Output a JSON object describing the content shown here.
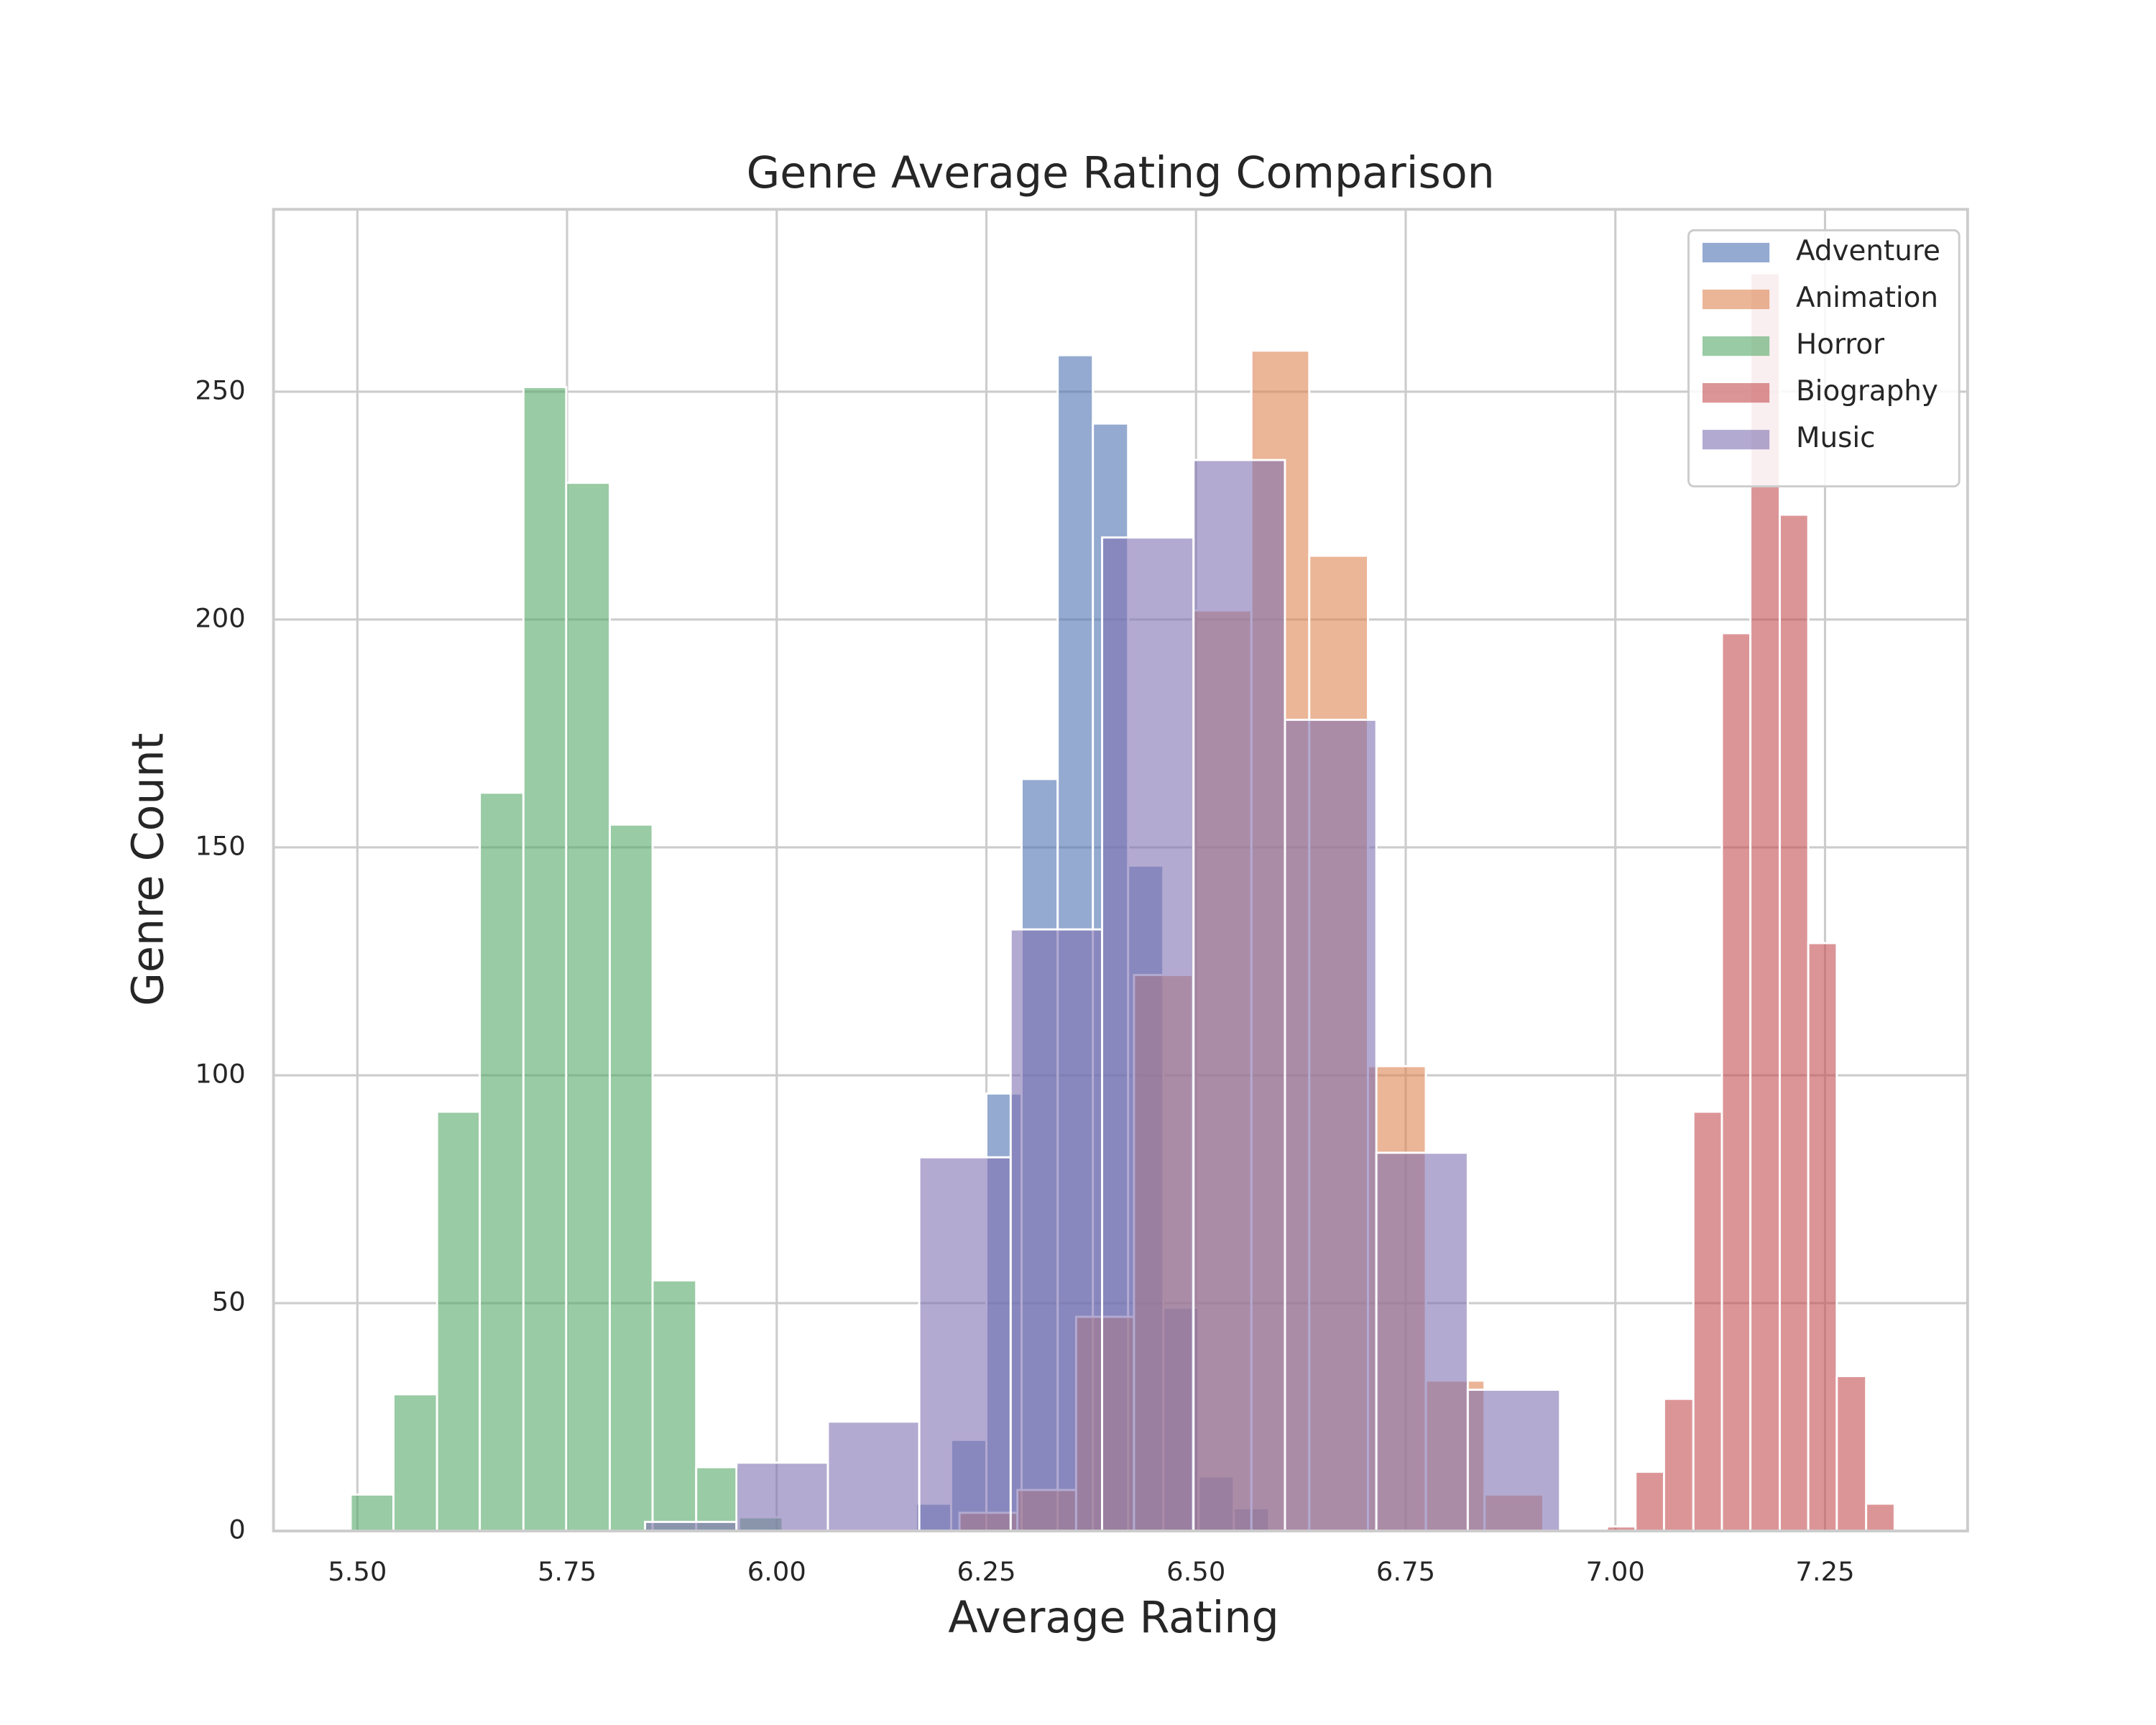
{
  "chart_data": {
    "type": "histogram",
    "title": "Genre Average Rating Comparison",
    "x_label": "Average Rating",
    "y_label": "Genre Count",
    "xlim": [
      5.4,
      7.42
    ],
    "ylim": [
      0,
      290
    ],
    "xticks": [
      {
        "value": 5.5,
        "label": "5.50"
      },
      5.75,
      {
        "value": 6.0,
        "label": "6.00"
      },
      6.25,
      {
        "value": 6.5,
        "label": "6.50"
      },
      6.75,
      {
        "value": 7.0,
        "label": "7.00"
      },
      7.25
    ],
    "yticks": [
      0,
      50,
      100,
      150,
      200,
      250
    ],
    "grid": true,
    "legend": "upper right",
    "opacity": 0.6,
    "series": [
      {
        "name": "Adventure",
        "color": "#4c72b0",
        "bins": [
          6.166,
          6.208,
          6.25,
          6.292,
          6.335,
          6.377,
          6.419,
          6.461,
          6.503,
          6.545,
          6.587
        ],
        "values": [
          6,
          20,
          96,
          165,
          258,
          243,
          146,
          49,
          12,
          5
        ]
      },
      {
        "name": "Animation",
        "color": "#dd8452",
        "bins": [
          6.218,
          6.287,
          6.357,
          6.426,
          6.496,
          6.566,
          6.635,
          6.705,
          6.774,
          6.844,
          6.914
        ],
        "values": [
          4,
          9,
          47,
          122,
          202,
          259,
          214,
          102,
          33,
          8
        ]
      },
      {
        "name": "Horror",
        "color": "#55a868",
        "bins": [
          5.492,
          5.543,
          5.595,
          5.646,
          5.698,
          5.749,
          5.801,
          5.852,
          5.904,
          5.955,
          6.007
        ],
        "values": [
          8,
          30,
          92,
          162,
          251,
          230,
          155,
          55,
          14,
          3
        ]
      },
      {
        "name": "Biography",
        "color": "#c44e52",
        "bins": [
          6.99,
          7.024,
          7.058,
          7.093,
          7.127,
          7.161,
          7.196,
          7.23,
          7.264,
          7.299,
          7.333
        ],
        "values": [
          1,
          13,
          29,
          92,
          197,
          276,
          223,
          129,
          34,
          6
        ]
      },
      {
        "name": "Music",
        "color": "#8172b3",
        "bins": [
          5.843,
          5.952,
          6.061,
          6.17,
          6.279,
          6.388,
          6.497,
          6.606,
          6.715,
          6.824,
          6.934
        ],
        "values": [
          2,
          15,
          24,
          82,
          132,
          218,
          235,
          178,
          83,
          31
        ]
      }
    ]
  }
}
